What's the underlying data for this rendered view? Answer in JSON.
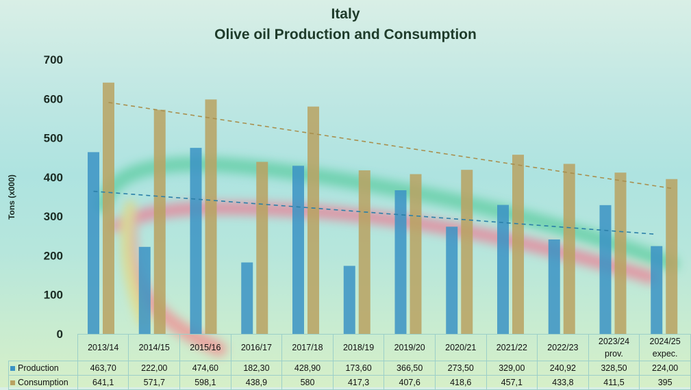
{
  "title_line1": "Italy",
  "title_line2": "Olive oil Production and Consumption",
  "chart_data": {
    "type": "bar",
    "title": "Italy Olive oil Production and Consumption",
    "ylabel": "Tons (x000)",
    "xlabel": "",
    "ylim": [
      0,
      700
    ],
    "yticks": [
      "0",
      "100",
      "200",
      "300",
      "400",
      "500",
      "600",
      "700"
    ],
    "categories": [
      "2013/14",
      "2014/15",
      "2015/16",
      "2016/17",
      "2017/18",
      "2018/19",
      "2019/20",
      "2020/21",
      "2021/22",
      "2022/23",
      "2023/24 prov.",
      "2024/25 expec."
    ],
    "category_lines": [
      [
        "2013/14"
      ],
      [
        "2014/15"
      ],
      [
        "2015/16"
      ],
      [
        "2016/17"
      ],
      [
        "2017/18"
      ],
      [
        "2018/19"
      ],
      [
        "2019/20"
      ],
      [
        "2020/21"
      ],
      [
        "2021/22"
      ],
      [
        "2022/23"
      ],
      [
        "2023/24",
        "prov."
      ],
      [
        "2024/25",
        "expec."
      ]
    ],
    "series": [
      {
        "name": "Production",
        "color": "#3b93c4",
        "values": [
          463.7,
          222.0,
          474.6,
          182.3,
          428.9,
          173.6,
          366.5,
          273.5,
          329.0,
          240.92,
          328.5,
          224.0
        ],
        "labels": [
          "463,70",
          "222,00",
          "474,60",
          "182,30",
          "428,90",
          "173,60",
          "366,50",
          "273,50",
          "329,00",
          "240,92",
          "328,50",
          "224,00"
        ],
        "trendline": "linear",
        "trend_color": "#2a7fa8"
      },
      {
        "name": "Consumption",
        "color": "#b9a262",
        "values": [
          641.1,
          571.7,
          598.1,
          438.9,
          580,
          417.3,
          407.6,
          418.6,
          457.1,
          433.8,
          411.5,
          395
        ],
        "labels": [
          "641,1",
          "571,7",
          "598,1",
          "438,9",
          "580",
          "417,3",
          "407,6",
          "418,6",
          "457,1",
          "433,8",
          "411,5",
          "395"
        ],
        "trendline": "linear",
        "trend_color": "#a88f4e"
      }
    ],
    "grid": false,
    "legend": "data-table-bottom"
  }
}
